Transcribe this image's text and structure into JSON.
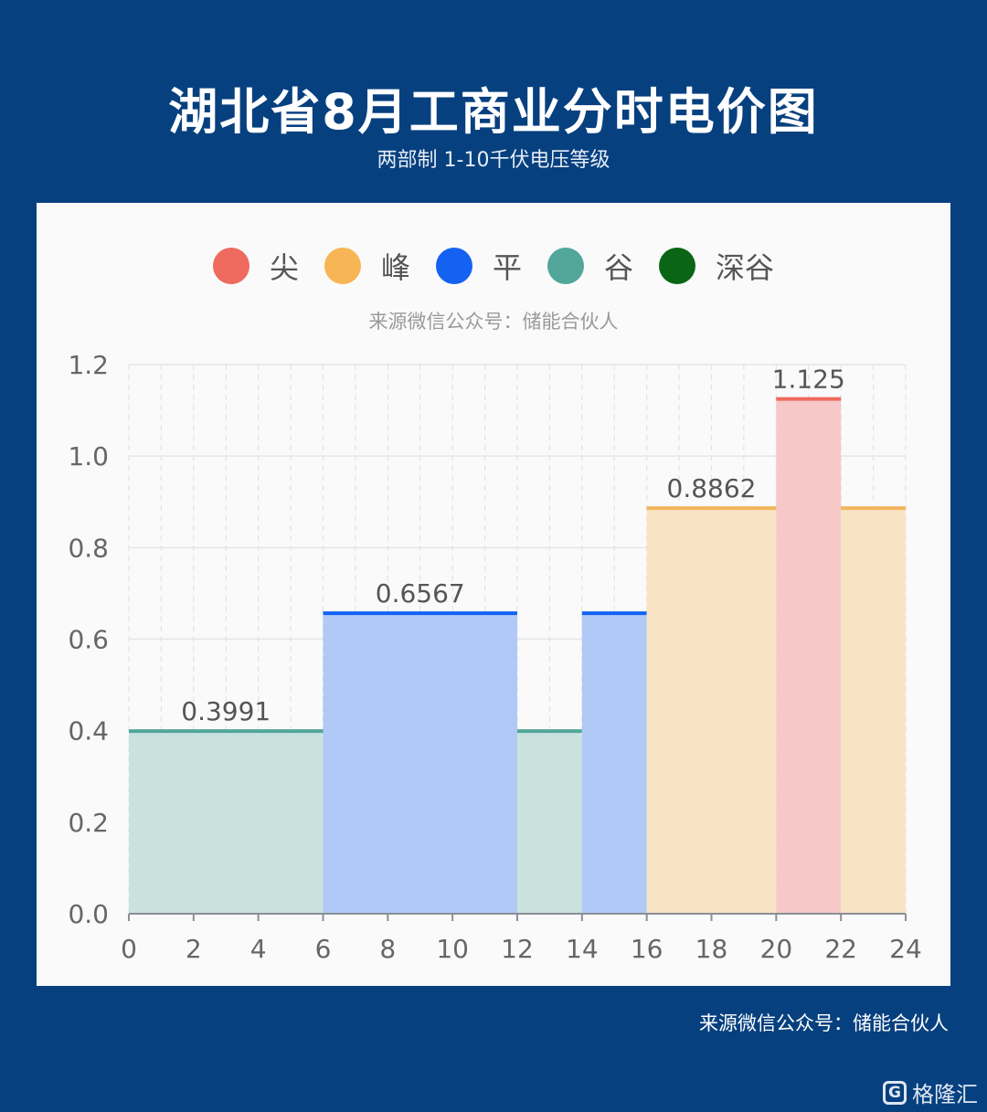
{
  "header": {
    "title": "湖北省8月工商业分时电价图",
    "subtitle": "两部制 1-10千伏电压等级"
  },
  "legend": [
    {
      "label": "尖",
      "color": "#ee6a5e"
    },
    {
      "label": "峰",
      "color": "#f7b555"
    },
    {
      "label": "平",
      "color": "#1462f2"
    },
    {
      "label": "谷",
      "color": "#52a69a"
    },
    {
      "label": "深谷",
      "color": "#0a6516"
    }
  ],
  "chart_source": "来源微信公众号：储能合伙人",
  "chart_data": {
    "type": "area",
    "x_ticks": [
      "0",
      "2",
      "4",
      "6",
      "8",
      "10",
      "12",
      "14",
      "16",
      "18",
      "20",
      "22",
      "24"
    ],
    "y_ticks": [
      "0.0",
      "0.2",
      "0.4",
      "0.6",
      "0.8",
      "1.0",
      "1.2"
    ],
    "xlim": [
      0,
      24
    ],
    "ylim": [
      0,
      1.2
    ],
    "grid": true,
    "segments": [
      {
        "start": 0,
        "end": 6,
        "value": 0.3991,
        "period": "谷",
        "label": "0.3991"
      },
      {
        "start": 6,
        "end": 12,
        "value": 0.6567,
        "period": "平",
        "label": "0.6567"
      },
      {
        "start": 12,
        "end": 14,
        "value": 0.3991,
        "period": "谷",
        "label": ""
      },
      {
        "start": 14,
        "end": 16,
        "value": 0.6567,
        "period": "平",
        "label": ""
      },
      {
        "start": 16,
        "end": 20,
        "value": 0.8862,
        "period": "峰",
        "label": "0.8862"
      },
      {
        "start": 20,
        "end": 22,
        "value": 1.125,
        "period": "尖",
        "label": "1.125"
      },
      {
        "start": 22,
        "end": 24,
        "value": 0.8862,
        "period": "峰",
        "label": ""
      }
    ],
    "period_colors": {
      "尖": {
        "line": "#ee6a5e",
        "fill": "#f6c8c8"
      },
      "峰": {
        "line": "#f2b65d",
        "fill": "#f8e3c5"
      },
      "平": {
        "line": "#1462f2",
        "fill": "#b0c9f6"
      },
      "谷": {
        "line": "#52a69a",
        "fill": "#c9e2de"
      }
    }
  },
  "footer": {
    "source": "来源微信公众号：储能合伙人",
    "logo_mark": "G",
    "logo_text": "格隆汇"
  }
}
